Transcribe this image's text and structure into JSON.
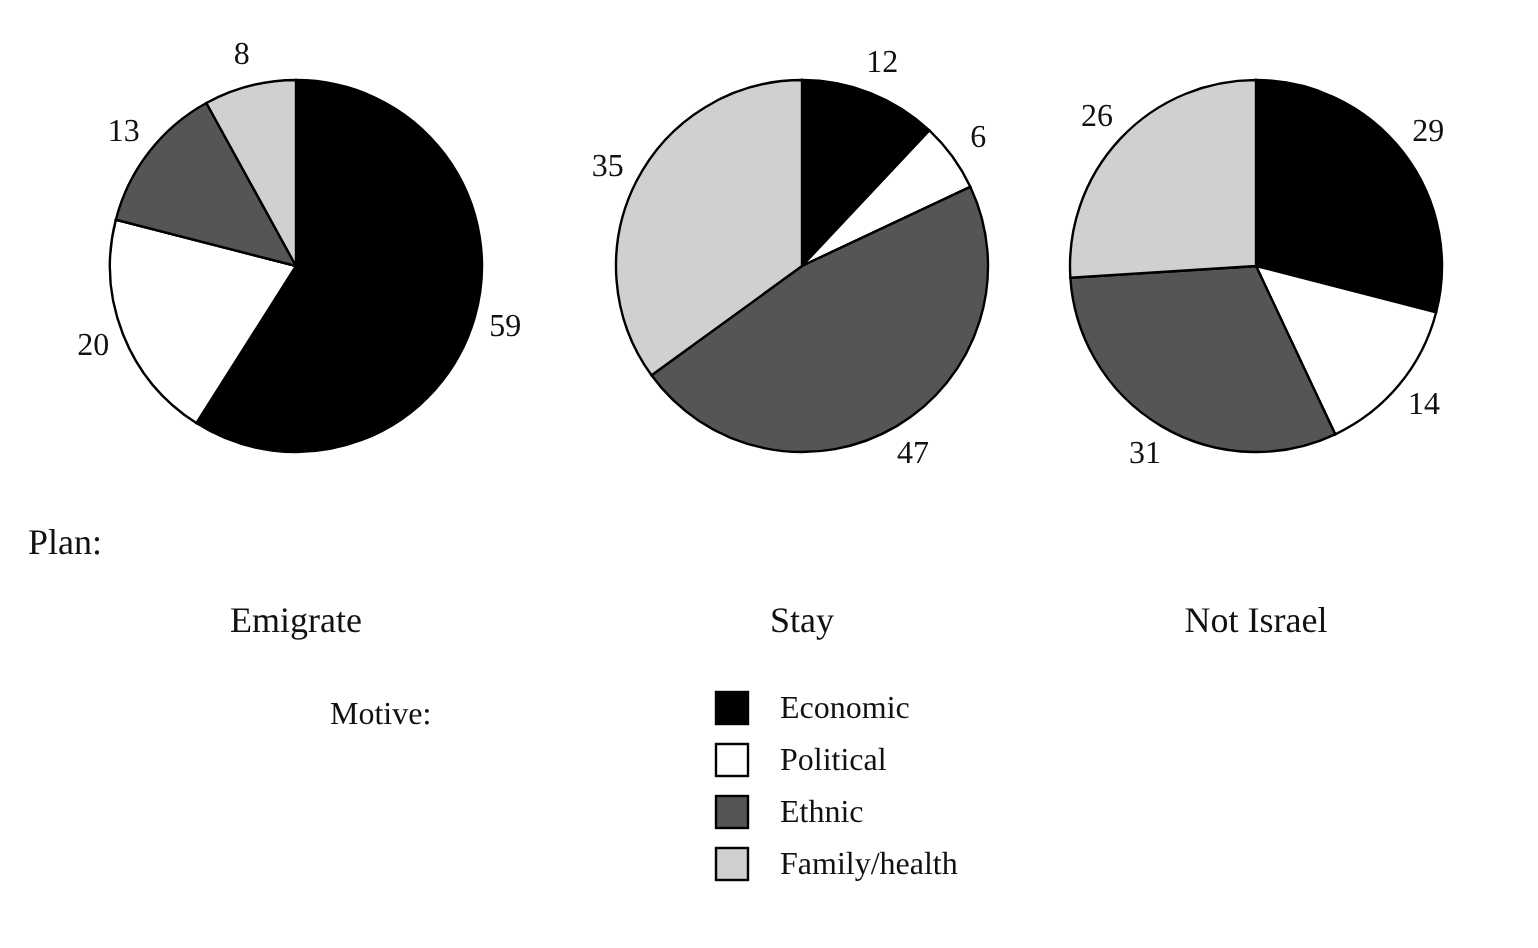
{
  "chart_data": [
    {
      "type": "pie",
      "title": "Emigrate",
      "categories": [
        "Economic",
        "Political",
        "Ethnic",
        "Family/health"
      ],
      "values": [
        59,
        20,
        13,
        8
      ],
      "colors": [
        "#000000",
        "#ffffff",
        "#555555",
        "#d0d0d0"
      ],
      "data_labels": true,
      "legend": "bottom",
      "legend_title": "Motive:",
      "annotations": [
        "Plan:"
      ]
    },
    {
      "type": "pie",
      "title": "Stay",
      "categories": [
        null,
        null,
        null,
        null
      ],
      "values": [
        12,
        6,
        47,
        35
      ],
      "colors": [
        "#000000",
        "#ffffff",
        "#555555",
        "#d0d0d0"
      ],
      "data_labels": true
    },
    {
      "type": "pie",
      "title": "Not Israel",
      "categories": [
        null,
        null,
        null,
        null
      ],
      "values": [
        29,
        14,
        31,
        26
      ],
      "colors": [
        "#000000",
        "#ffffff",
        "#555555",
        "#d0d0d0"
      ],
      "data_labels": true
    }
  ]
}
